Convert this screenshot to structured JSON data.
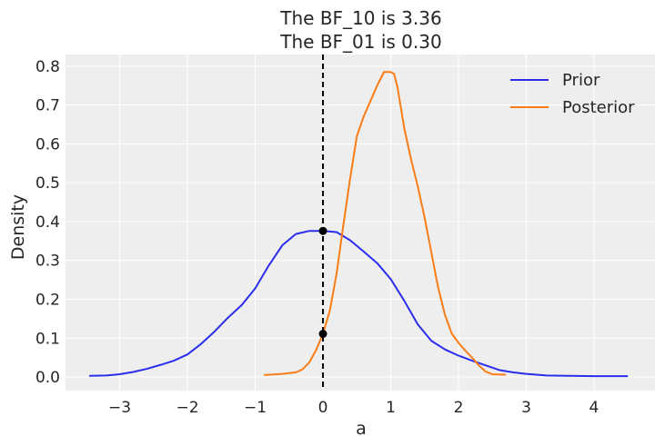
{
  "chart_data": {
    "type": "line",
    "title_lines": [
      "The BF_10 is 3.36",
      "The BF_01 is 0.30"
    ],
    "xlabel": "a",
    "ylabel": "Density",
    "xlim": [
      -3.8,
      4.9
    ],
    "ylim": [
      -0.035,
      0.83
    ],
    "xticks": [
      -3,
      -2,
      -1,
      0,
      1,
      2,
      3,
      4
    ],
    "xtick_labels": [
      "−3",
      "−2",
      "−1",
      "0",
      "1",
      "2",
      "3",
      "4"
    ],
    "yticks": [
      0.0,
      0.1,
      0.2,
      0.3,
      0.4,
      0.5,
      0.6,
      0.7,
      0.8
    ],
    "ytick_labels": [
      "0.0",
      "0.1",
      "0.2",
      "0.3",
      "0.4",
      "0.5",
      "0.6",
      "0.7",
      "0.8"
    ],
    "grid": true,
    "legend_position": "top-right",
    "background_color": "#eeeeee",
    "grid_color": "#ffffff",
    "series": [
      {
        "name": "Prior",
        "color": "#2a2eec",
        "x": [
          -3.45,
          -3.2,
          -3.0,
          -2.8,
          -2.6,
          -2.4,
          -2.2,
          -2.0,
          -1.8,
          -1.6,
          -1.4,
          -1.2,
          -1.0,
          -0.8,
          -0.6,
          -0.4,
          -0.2,
          0.0,
          0.2,
          0.4,
          0.6,
          0.8,
          1.0,
          1.2,
          1.4,
          1.6,
          1.8,
          2.0,
          2.2,
          2.4,
          2.6,
          2.8,
          3.0,
          3.3,
          3.6,
          4.0,
          4.5
        ],
        "values": [
          0.003,
          0.004,
          0.007,
          0.013,
          0.021,
          0.031,
          0.042,
          0.058,
          0.085,
          0.117,
          0.153,
          0.185,
          0.228,
          0.287,
          0.339,
          0.368,
          0.376,
          0.376,
          0.373,
          0.352,
          0.323,
          0.293,
          0.252,
          0.196,
          0.135,
          0.093,
          0.071,
          0.055,
          0.042,
          0.03,
          0.018,
          0.012,
          0.008,
          0.004,
          0.003,
          0.002,
          0.002
        ]
      },
      {
        "name": "Posterior",
        "color": "#fa7c17",
        "x": [
          -0.87,
          -0.6,
          -0.4,
          -0.3,
          -0.2,
          -0.1,
          0.0,
          0.1,
          0.2,
          0.3,
          0.4,
          0.5,
          0.6,
          0.7,
          0.8,
          0.9,
          1.0,
          1.05,
          1.1,
          1.2,
          1.3,
          1.4,
          1.5,
          1.6,
          1.7,
          1.8,
          1.9,
          2.0,
          2.1,
          2.2,
          2.3,
          2.4,
          2.5,
          2.7
        ],
        "values": [
          0.005,
          0.008,
          0.012,
          0.02,
          0.038,
          0.07,
          0.111,
          0.17,
          0.265,
          0.39,
          0.51,
          0.62,
          0.67,
          0.71,
          0.75,
          0.785,
          0.785,
          0.78,
          0.745,
          0.64,
          0.56,
          0.49,
          0.41,
          0.32,
          0.23,
          0.16,
          0.112,
          0.088,
          0.068,
          0.05,
          0.03,
          0.014,
          0.007,
          0.006
        ]
      }
    ],
    "reference_line": {
      "x": 0,
      "style": "dashed",
      "color": "#000000"
    },
    "markers": [
      {
        "x": 0,
        "y": 0.376,
        "color": "#000000"
      },
      {
        "x": 0,
        "y": 0.111,
        "color": "#000000"
      }
    ]
  }
}
